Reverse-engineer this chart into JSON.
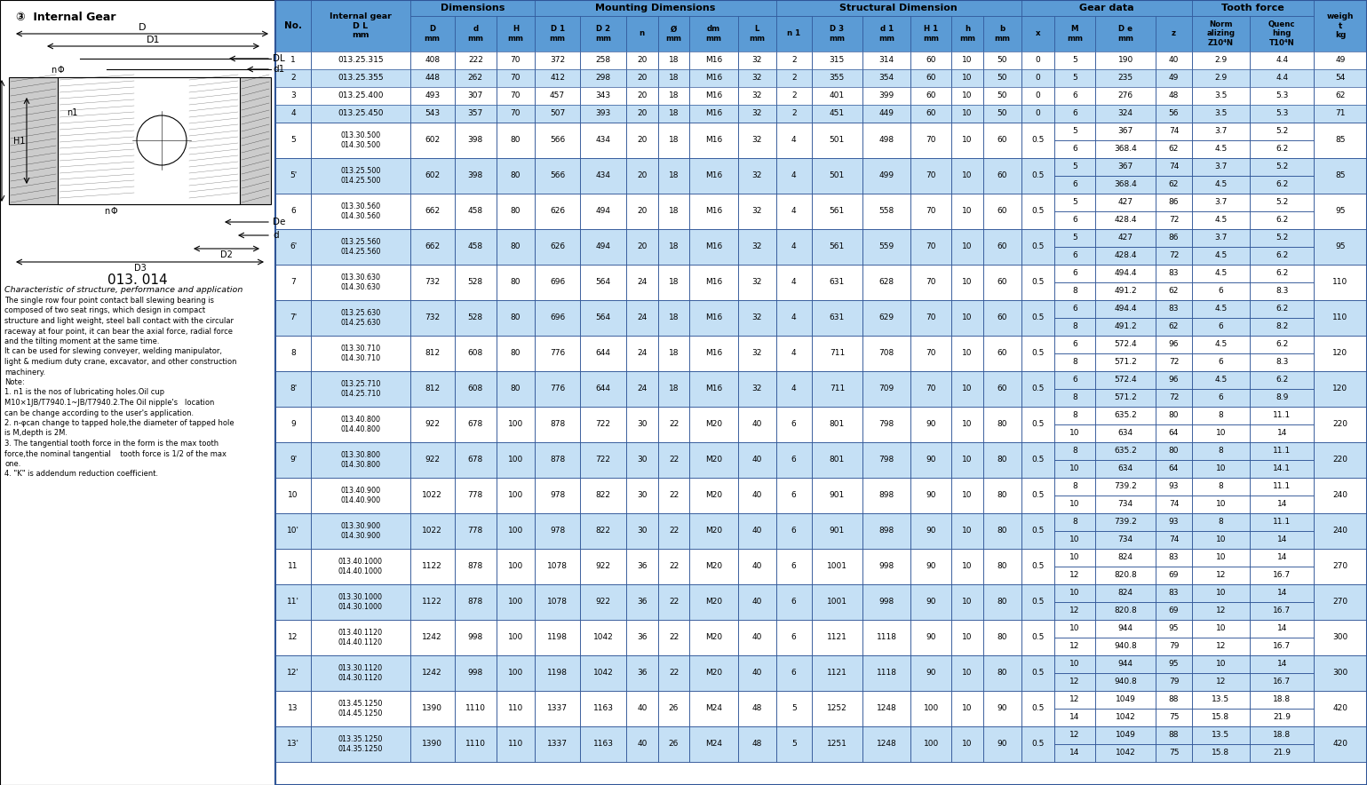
{
  "header_bg": "#5B9BD5",
  "row_bg_white": "#FFFFFF",
  "row_bg_light": "#C5E0F5",
  "border_color": "#2F5597",
  "text_color": "#000000",
  "col_labels_row2": [
    "No.",
    "Internal gear\nD L\nmm",
    "D\nmm",
    "d\nmm",
    "H\nmm",
    "D 1\nmm",
    "D 2\nmm",
    "n",
    "Ø\nmm",
    "dm\nmm",
    "L\nmm",
    "n 1",
    "D 3\nmm",
    "d 1\nmm",
    "H 1\nmm",
    "h\nmm",
    "b\nmm",
    "x",
    "M\nmm",
    "D e\nmm",
    "z",
    "Norm\nalizing\nZ10⁴N",
    "Quenc\nhing\nT10⁴N",
    "weigh\nt\nkg"
  ],
  "header_groups": [
    {
      "label": "Dimensions",
      "start": 2,
      "end": 4
    },
    {
      "label": "Mounting Dimensions",
      "start": 5,
      "end": 10
    },
    {
      "label": "Structural Dimension",
      "start": 11,
      "end": 16
    },
    {
      "label": "Gear data",
      "start": 17,
      "end": 20
    },
    {
      "label": "Tooth force",
      "start": 21,
      "end": 22
    }
  ],
  "col_widths_raw": [
    28,
    78,
    35,
    33,
    30,
    36,
    36,
    25,
    25,
    38,
    30,
    28,
    40,
    38,
    32,
    25,
    30,
    26,
    32,
    48,
    28,
    46,
    50,
    42
  ],
  "rows": [
    {
      "no": "1",
      "gear1": "013.25.315",
      "gear2": null,
      "D": "408",
      "d": "222",
      "H": "70",
      "D1": "372",
      "D2": "258",
      "n": "20",
      "phi": "18",
      "dm": "M16",
      "L": "32",
      "n1": "2",
      "D3": "315",
      "d1": "314",
      "H1": "60",
      "h": "10",
      "b": "50",
      "x": "0",
      "rows_data": [
        [
          "5",
          "190",
          "40",
          "2.9",
          "4.4"
        ]
      ],
      "weight": "49"
    },
    {
      "no": "2",
      "gear1": "013.25.355",
      "gear2": null,
      "D": "448",
      "d": "262",
      "H": "70",
      "D1": "412",
      "D2": "298",
      "n": "20",
      "phi": "18",
      "dm": "M16",
      "L": "32",
      "n1": "2",
      "D3": "355",
      "d1": "354",
      "H1": "60",
      "h": "10",
      "b": "50",
      "x": "0",
      "rows_data": [
        [
          "5",
          "235",
          "49",
          "2.9",
          "4.4"
        ]
      ],
      "weight": "54"
    },
    {
      "no": "3",
      "gear1": "013.25.400",
      "gear2": null,
      "D": "493",
      "d": "307",
      "H": "70",
      "D1": "457",
      "D2": "343",
      "n": "20",
      "phi": "18",
      "dm": "M16",
      "L": "32",
      "n1": "2",
      "D3": "401",
      "d1": "399",
      "H1": "60",
      "h": "10",
      "b": "50",
      "x": "0",
      "rows_data": [
        [
          "6",
          "276",
          "48",
          "3.5",
          "5.3"
        ]
      ],
      "weight": "62"
    },
    {
      "no": "4",
      "gear1": "013.25.450",
      "gear2": null,
      "D": "543",
      "d": "357",
      "H": "70",
      "D1": "507",
      "D2": "393",
      "n": "20",
      "phi": "18",
      "dm": "M16",
      "L": "32",
      "n1": "2",
      "D3": "451",
      "d1": "449",
      "H1": "60",
      "h": "10",
      "b": "50",
      "x": "0",
      "rows_data": [
        [
          "6",
          "324",
          "56",
          "3.5",
          "5.3"
        ]
      ],
      "weight": "71"
    },
    {
      "no": "5",
      "gear1": "013.30.500",
      "gear2": "014.30.500",
      "D": "602",
      "d": "398",
      "H": "80",
      "D1": "566",
      "D2": "434",
      "n": "20",
      "phi": "18",
      "dm": "M16",
      "L": "32",
      "n1": "4",
      "D3": "501",
      "d1": "498",
      "H1": "70",
      "h": "10",
      "b": "60",
      "x": "0.5",
      "rows_data": [
        [
          "5",
          "367",
          "74",
          "3.7",
          "5.2"
        ],
        [
          "6",
          "368.4",
          "62",
          "4.5",
          "6.2"
        ]
      ],
      "weight": "85"
    },
    {
      "no": "5'",
      "gear1": "013.25.500",
      "gear2": "014.25.500",
      "D": "602",
      "d": "398",
      "H": "80",
      "D1": "566",
      "D2": "434",
      "n": "20",
      "phi": "18",
      "dm": "M16",
      "L": "32",
      "n1": "4",
      "D3": "501",
      "d1": "499",
      "H1": "70",
      "h": "10",
      "b": "60",
      "x": "0.5",
      "rows_data": [
        [
          "5",
          "367",
          "74",
          "3.7",
          "5.2"
        ],
        [
          "6",
          "368.4",
          "62",
          "4.5",
          "6.2"
        ]
      ],
      "weight": "85"
    },
    {
      "no": "6",
      "gear1": "013.30.560",
      "gear2": "014.30.560",
      "D": "662",
      "d": "458",
      "H": "80",
      "D1": "626",
      "D2": "494",
      "n": "20",
      "phi": "18",
      "dm": "M16",
      "L": "32",
      "n1": "4",
      "D3": "561",
      "d1": "558",
      "H1": "70",
      "h": "10",
      "b": "60",
      "x": "0.5",
      "rows_data": [
        [
          "5",
          "427",
          "86",
          "3.7",
          "5.2"
        ],
        [
          "6",
          "428.4",
          "72",
          "4.5",
          "6.2"
        ]
      ],
      "weight": "95"
    },
    {
      "no": "6'",
      "gear1": "013.25.560",
      "gear2": "014.25.560",
      "D": "662",
      "d": "458",
      "H": "80",
      "D1": "626",
      "D2": "494",
      "n": "20",
      "phi": "18",
      "dm": "M16",
      "L": "32",
      "n1": "4",
      "D3": "561",
      "d1": "559",
      "H1": "70",
      "h": "10",
      "b": "60",
      "x": "0.5",
      "rows_data": [
        [
          "5",
          "427",
          "86",
          "3.7",
          "5.2"
        ],
        [
          "6",
          "428.4",
          "72",
          "4.5",
          "6.2"
        ]
      ],
      "weight": "95"
    },
    {
      "no": "7",
      "gear1": "013.30.630",
      "gear2": "014.30.630",
      "D": "732",
      "d": "528",
      "H": "80",
      "D1": "696",
      "D2": "564",
      "n": "24",
      "phi": "18",
      "dm": "M16",
      "L": "32",
      "n1": "4",
      "D3": "631",
      "d1": "628",
      "H1": "70",
      "h": "10",
      "b": "60",
      "x": "0.5",
      "rows_data": [
        [
          "6",
          "494.4",
          "83",
          "4.5",
          "6.2"
        ],
        [
          "8",
          "491.2",
          "62",
          "6",
          "8.3"
        ]
      ],
      "weight": "110"
    },
    {
      "no": "7'",
      "gear1": "013.25.630",
      "gear2": "014.25.630",
      "D": "732",
      "d": "528",
      "H": "80",
      "D1": "696",
      "D2": "564",
      "n": "24",
      "phi": "18",
      "dm": "M16",
      "L": "32",
      "n1": "4",
      "D3": "631",
      "d1": "629",
      "H1": "70",
      "h": "10",
      "b": "60",
      "x": "0.5",
      "rows_data": [
        [
          "6",
          "494.4",
          "83",
          "4.5",
          "6.2"
        ],
        [
          "8",
          "491.2",
          "62",
          "6",
          "8.2"
        ]
      ],
      "weight": "110"
    },
    {
      "no": "8",
      "gear1": "013.30.710",
      "gear2": "014.30.710",
      "D": "812",
      "d": "608",
      "H": "80",
      "D1": "776",
      "D2": "644",
      "n": "24",
      "phi": "18",
      "dm": "M16",
      "L": "32",
      "n1": "4",
      "D3": "711",
      "d1": "708",
      "H1": "70",
      "h": "10",
      "b": "60",
      "x": "0.5",
      "rows_data": [
        [
          "6",
          "572.4",
          "96",
          "4.5",
          "6.2"
        ],
        [
          "8",
          "571.2",
          "72",
          "6",
          "8.3"
        ]
      ],
      "weight": "120"
    },
    {
      "no": "8'",
      "gear1": "013.25.710",
      "gear2": "014.25.710",
      "D": "812",
      "d": "608",
      "H": "80",
      "D1": "776",
      "D2": "644",
      "n": "24",
      "phi": "18",
      "dm": "M16",
      "L": "32",
      "n1": "4",
      "D3": "711",
      "d1": "709",
      "H1": "70",
      "h": "10",
      "b": "60",
      "x": "0.5",
      "rows_data": [
        [
          "6",
          "572.4",
          "96",
          "4.5",
          "6.2"
        ],
        [
          "8",
          "571.2",
          "72",
          "6",
          "8.9"
        ]
      ],
      "weight": "120"
    },
    {
      "no": "9",
      "gear1": "013.40.800",
      "gear2": "014.40.800",
      "D": "922",
      "d": "678",
      "H": "100",
      "D1": "878",
      "D2": "722",
      "n": "30",
      "phi": "22",
      "dm": "M20",
      "L": "40",
      "n1": "6",
      "D3": "801",
      "d1": "798",
      "H1": "90",
      "h": "10",
      "b": "80",
      "x": "0.5",
      "rows_data": [
        [
          "8",
          "635.2",
          "80",
          "8",
          "11.1"
        ],
        [
          "10",
          "634",
          "64",
          "10",
          "14"
        ]
      ],
      "weight": "220"
    },
    {
      "no": "9'",
      "gear1": "013.30.800",
      "gear2": "014.30.800",
      "D": "922",
      "d": "678",
      "H": "100",
      "D1": "878",
      "D2": "722",
      "n": "30",
      "phi": "22",
      "dm": "M20",
      "L": "40",
      "n1": "6",
      "D3": "801",
      "d1": "798",
      "H1": "90",
      "h": "10",
      "b": "80",
      "x": "0.5",
      "rows_data": [
        [
          "8",
          "635.2",
          "80",
          "8",
          "11.1"
        ],
        [
          "10",
          "634",
          "64",
          "10",
          "14.1"
        ]
      ],
      "weight": "220"
    },
    {
      "no": "10",
      "gear1": "013.40.900",
      "gear2": "014.40.900",
      "D": "1022",
      "d": "778",
      "H": "100",
      "D1": "978",
      "D2": "822",
      "n": "30",
      "phi": "22",
      "dm": "M20",
      "L": "40",
      "n1": "6",
      "D3": "901",
      "d1": "898",
      "H1": "90",
      "h": "10",
      "b": "80",
      "x": "0.5",
      "rows_data": [
        [
          "8",
          "739.2",
          "93",
          "8",
          "11.1"
        ],
        [
          "10",
          "734",
          "74",
          "10",
          "14"
        ]
      ],
      "weight": "240"
    },
    {
      "no": "10'",
      "gear1": "013.30.900",
      "gear2": "014.30.900",
      "D": "1022",
      "d": "778",
      "H": "100",
      "D1": "978",
      "D2": "822",
      "n": "30",
      "phi": "22",
      "dm": "M20",
      "L": "40",
      "n1": "6",
      "D3": "901",
      "d1": "898",
      "H1": "90",
      "h": "10",
      "b": "80",
      "x": "0.5",
      "rows_data": [
        [
          "8",
          "739.2",
          "93",
          "8",
          "11.1"
        ],
        [
          "10",
          "734",
          "74",
          "10",
          "14"
        ]
      ],
      "weight": "240"
    },
    {
      "no": "11",
      "gear1": "013.40.1000",
      "gear2": "014.40.1000",
      "D": "1122",
      "d": "878",
      "H": "100",
      "D1": "1078",
      "D2": "922",
      "n": "36",
      "phi": "22",
      "dm": "M20",
      "L": "40",
      "n1": "6",
      "D3": "1001",
      "d1": "998",
      "H1": "90",
      "h": "10",
      "b": "80",
      "x": "0.5",
      "rows_data": [
        [
          "10",
          "824",
          "83",
          "10",
          "14"
        ],
        [
          "12",
          "820.8",
          "69",
          "12",
          "16.7"
        ]
      ],
      "weight": "270"
    },
    {
      "no": "11'",
      "gear1": "013.30.1000",
      "gear2": "014.30.1000",
      "D": "1122",
      "d": "878",
      "H": "100",
      "D1": "1078",
      "D2": "922",
      "n": "36",
      "phi": "22",
      "dm": "M20",
      "L": "40",
      "n1": "6",
      "D3": "1001",
      "d1": "998",
      "H1": "90",
      "h": "10",
      "b": "80",
      "x": "0.5",
      "rows_data": [
        [
          "10",
          "824",
          "83",
          "10",
          "14"
        ],
        [
          "12",
          "820.8",
          "69",
          "12",
          "16.7"
        ]
      ],
      "weight": "270"
    },
    {
      "no": "12",
      "gear1": "013.40.1120",
      "gear2": "014.40.1120",
      "D": "1242",
      "d": "998",
      "H": "100",
      "D1": "1198",
      "D2": "1042",
      "n": "36",
      "phi": "22",
      "dm": "M20",
      "L": "40",
      "n1": "6",
      "D3": "1121",
      "d1": "1118",
      "H1": "90",
      "h": "10",
      "b": "80",
      "x": "0.5",
      "rows_data": [
        [
          "10",
          "944",
          "95",
          "10",
          "14"
        ],
        [
          "12",
          "940.8",
          "79",
          "12",
          "16.7"
        ]
      ],
      "weight": "300"
    },
    {
      "no": "12'",
      "gear1": "013.30.1120",
      "gear2": "014.30.1120",
      "D": "1242",
      "d": "998",
      "H": "100",
      "D1": "1198",
      "D2": "1042",
      "n": "36",
      "phi": "22",
      "dm": "M20",
      "L": "40",
      "n1": "6",
      "D3": "1121",
      "d1": "1118",
      "H1": "90",
      "h": "10",
      "b": "80",
      "x": "0.5",
      "rows_data": [
        [
          "10",
          "944",
          "95",
          "10",
          "14"
        ],
        [
          "12",
          "940.8",
          "79",
          "12",
          "16.7"
        ]
      ],
      "weight": "300"
    },
    {
      "no": "13",
      "gear1": "013.45.1250",
      "gear2": "014.45.1250",
      "D": "1390",
      "d": "1110",
      "H": "110",
      "D1": "1337",
      "D2": "1163",
      "n": "40",
      "phi": "26",
      "dm": "M24",
      "L": "48",
      "n1": "5",
      "D3": "1252",
      "d1": "1248",
      "H1": "100",
      "h": "10",
      "b": "90",
      "x": "0.5",
      "rows_data": [
        [
          "12",
          "1049",
          "88",
          "13.5",
          "18.8"
        ],
        [
          "14",
          "1042",
          "75",
          "15.8",
          "21.9"
        ]
      ],
      "weight": "420"
    },
    {
      "no": "13'",
      "gear1": "013.35.1250",
      "gear2": "014.35.1250",
      "D": "1390",
      "d": "1110",
      "H": "110",
      "D1": "1337",
      "D2": "1163",
      "n": "40",
      "phi": "26",
      "dm": "M24",
      "L": "48",
      "n1": "5",
      "D3": "1251",
      "d1": "1248",
      "H1": "100",
      "h": "10",
      "b": "90",
      "x": "0.5",
      "rows_data": [
        [
          "12",
          "1049",
          "88",
          "13.5",
          "18.8"
        ],
        [
          "14",
          "1042",
          "75",
          "15.8",
          "21.9"
        ]
      ],
      "weight": "420"
    }
  ],
  "left_text": [
    "③  Internal Gear",
    "013. 014",
    "Characteristic of structure, performance and application",
    "The single row four point contact ball slewing bearing is",
    "composed of two seat rings, which design in compact",
    "structure and light weight, steel ball contact with the circular",
    "raceway at four point, it can bear the axial force, radial force",
    "and the tilting moment at the same time.",
    "It can be used for slewing conveyer, welding manipulator,",
    "light & medium duty crane, excavator, and other construction",
    "machinery.",
    "Note:",
    "1. n1 is the nos of lubricating holes.Oil cup",
    "M10×1JB/T7940.1~JB/T7940.2.The Oil nipple's   location",
    "can be change according to the user's application.",
    "2. n-φcan change to tapped hole,the diameter of tapped hole",
    "is M,depth is 2M.",
    "3. The tangential tooth force in the form is the max tooth",
    "force,the nominal tangential    tooth force is 1/2 of the max",
    "one.",
    "4. \"K\" is addendum reduction coefficient."
  ]
}
